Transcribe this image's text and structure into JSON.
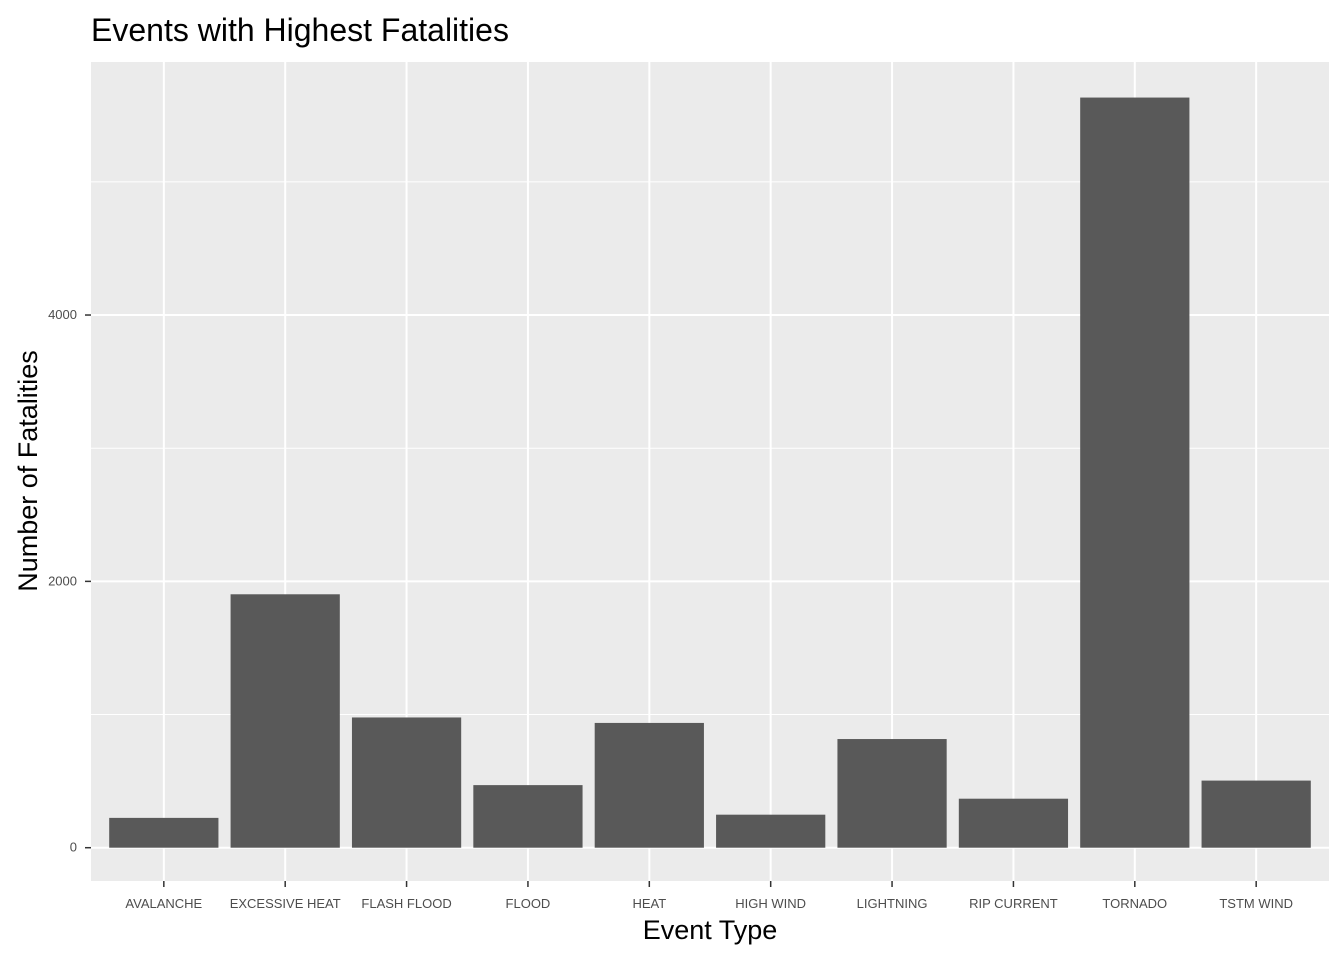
{
  "chart_data": {
    "type": "bar",
    "title": "Events with Highest Fatalities",
    "xlabel": "Event Type",
    "ylabel": "Number of Fatalities",
    "categories": [
      "AVALANCHE",
      "EXCESSIVE HEAT",
      "FLASH FLOOD",
      "FLOOD",
      "HEAT",
      "HIGH WIND",
      "LIGHTNING",
      "RIP CURRENT",
      "TORNADO",
      "TSTM WIND"
    ],
    "values": [
      224,
      1903,
      978,
      470,
      937,
      248,
      816,
      368,
      5633,
      504
    ],
    "ylim": [
      -250,
      5900
    ],
    "yticks": [
      0,
      2000,
      4000
    ],
    "grid": true,
    "legend": "none",
    "colors": {
      "bar": "#595959",
      "panel": "#ebebeb",
      "grid": "#ffffff"
    }
  }
}
